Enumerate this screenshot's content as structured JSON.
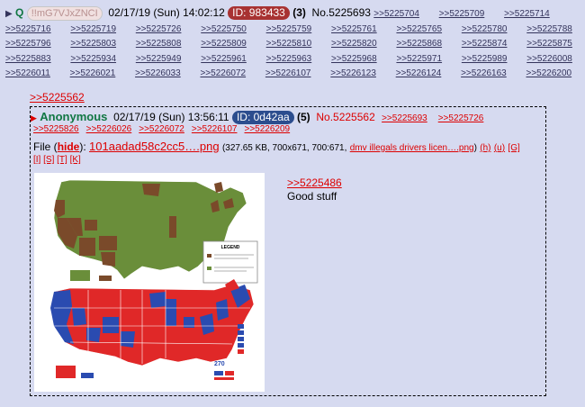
{
  "post": {
    "name": "Q",
    "tripcode": "!!mG7VJxZNCI",
    "datetime": "02/17/19 (Sun) 14:02:12",
    "id_label": "ID: 983433",
    "reply_count": "(3)",
    "post_no": "No.5225693",
    "replies": [
      ">>5225704",
      ">>5225709",
      ">>5225714",
      ">>5225716",
      ">>5225719",
      ">>5225726",
      ">>5225750",
      ">>5225759",
      ">>5225761",
      ">>5225765",
      ">>5225780",
      ">>5225788",
      ">>5225796",
      ">>5225803",
      ">>5225808",
      ">>5225809",
      ">>5225810",
      ">>5225820",
      ">>5225868",
      ">>5225874",
      ">>5225875",
      ">>5225883",
      ">>5225934",
      ">>5225949",
      ">>5225961",
      ">>5225963",
      ">>5225968",
      ">>5225971",
      ">>5225989",
      ">>5226008",
      ">>5226011",
      ">>5226021",
      ">>5226033",
      ">>5226072",
      ">>5226107",
      ">>5226123",
      ">>5226124",
      ">>5226163",
      ">>5226200"
    ]
  },
  "quote_link": ">>5225562",
  "inline": {
    "name": "Anonymous",
    "datetime": "02/17/19 (Sun) 13:56:11",
    "id_label": "ID: 0d42aa",
    "reply_count": "(5)",
    "post_no": "No.5225562",
    "replies": [
      ">>5225693",
      ">>5225726",
      ">>5225826",
      ">>5226026",
      ">>5226072",
      ">>5226107",
      ">>5226209"
    ],
    "file_label": "File",
    "hide_label": "hide",
    "filename": "101aadad58c2cc5….png",
    "file_meta": "(327.65 KB, 700x671, 700:671,",
    "orig_name": "dmv illegals drivers licen….png",
    "tools": [
      "(h)",
      "(u)",
      "[G]",
      "[I]",
      "[S]",
      "[T]",
      "[K]"
    ],
    "message_quote": ">>5225486",
    "message_text": "Good stuff",
    "legend_title": "LEGEND",
    "legend_1": "States offering driving privileges to unauthorized immigrants",
    "legend_2": "States offering no driving privileges to unauthorized immigrants",
    "ev_number": "270"
  },
  "colors": {
    "green_map": "#6a8e3a",
    "brown_map": "#7a4a2a",
    "red": "#e02828",
    "blue": "#2a4bb0"
  }
}
